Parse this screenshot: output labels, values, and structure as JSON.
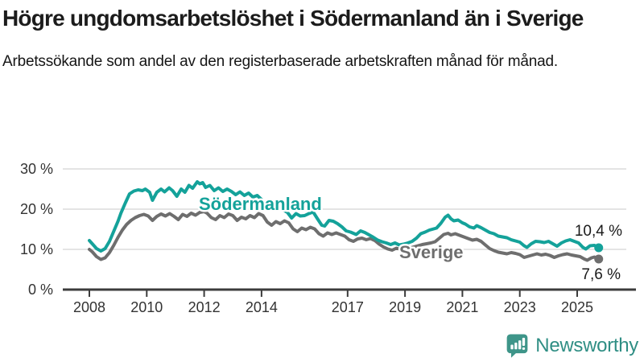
{
  "header": {
    "title": "Högre ungdomsarbetslöshet i Södermanland än i Sverige",
    "subtitle": "Arbetssökande som andel av den registerbaserade arbetskraften månad för månad."
  },
  "chart_data": {
    "type": "line",
    "unit": "%",
    "x_axis": {
      "tick_years": [
        2008,
        2010,
        2012,
        2014,
        2017,
        2019,
        2021,
        2023,
        2025
      ],
      "range": [
        2008.0,
        2025.75
      ]
    },
    "y_axis": {
      "ticks": [
        {
          "value": 0,
          "label": "0 %"
        },
        {
          "value": 10,
          "label": "10 %"
        },
        {
          "value": 20,
          "label": "20 %"
        },
        {
          "value": 30,
          "label": "30 %"
        }
      ],
      "range": [
        0,
        30
      ],
      "gridlines": true
    },
    "colors": {
      "grid": "#DCDCDC",
      "axis": "#3C3C3C",
      "tick_text": "#333333",
      "value_label_text": "#1A1A1A"
    },
    "series": [
      {
        "name": "Sverige",
        "color": "#6E6E6E",
        "end_label": "7,6 %",
        "end_value": 7.6,
        "points": [
          [
            2008.0,
            10.0
          ],
          [
            2008.1,
            9.4
          ],
          [
            2008.25,
            8.2
          ],
          [
            2008.4,
            7.5
          ],
          [
            2008.55,
            7.9
          ],
          [
            2008.7,
            9.2
          ],
          [
            2008.85,
            11.0
          ],
          [
            2009.0,
            13.0
          ],
          [
            2009.15,
            14.8
          ],
          [
            2009.3,
            16.2
          ],
          [
            2009.45,
            17.2
          ],
          [
            2009.6,
            17.9
          ],
          [
            2009.75,
            18.4
          ],
          [
            2009.9,
            18.7
          ],
          [
            2010.05,
            18.3
          ],
          [
            2010.2,
            17.2
          ],
          [
            2010.35,
            18.2
          ],
          [
            2010.5,
            18.8
          ],
          [
            2010.65,
            18.3
          ],
          [
            2010.8,
            18.9
          ],
          [
            2010.95,
            18.2
          ],
          [
            2011.1,
            17.4
          ],
          [
            2011.25,
            18.7
          ],
          [
            2011.4,
            18.2
          ],
          [
            2011.55,
            19.0
          ],
          [
            2011.7,
            18.5
          ],
          [
            2011.85,
            19.2
          ],
          [
            2012.0,
            19.4
          ],
          [
            2012.1,
            19.0
          ],
          [
            2012.25,
            17.9
          ],
          [
            2012.4,
            17.4
          ],
          [
            2012.55,
            18.4
          ],
          [
            2012.7,
            17.9
          ],
          [
            2012.85,
            18.8
          ],
          [
            2013.0,
            18.4
          ],
          [
            2013.15,
            17.2
          ],
          [
            2013.3,
            18.0
          ],
          [
            2013.45,
            17.6
          ],
          [
            2013.6,
            18.4
          ],
          [
            2013.75,
            17.9
          ],
          [
            2013.9,
            18.9
          ],
          [
            2014.05,
            18.4
          ],
          [
            2014.2,
            16.8
          ],
          [
            2014.35,
            16.0
          ],
          [
            2014.5,
            16.9
          ],
          [
            2014.65,
            16.4
          ],
          [
            2014.8,
            17.1
          ],
          [
            2014.95,
            16.6
          ],
          [
            2015.1,
            15.1
          ],
          [
            2015.25,
            14.4
          ],
          [
            2015.4,
            15.3
          ],
          [
            2015.55,
            14.9
          ],
          [
            2015.7,
            15.5
          ],
          [
            2015.85,
            15.1
          ],
          [
            2016.0,
            13.9
          ],
          [
            2016.15,
            13.3
          ],
          [
            2016.3,
            14.1
          ],
          [
            2016.45,
            13.7
          ],
          [
            2016.6,
            14.1
          ],
          [
            2016.75,
            13.7
          ],
          [
            2016.9,
            13.3
          ],
          [
            2017.05,
            12.4
          ],
          [
            2017.2,
            12.0
          ],
          [
            2017.35,
            12.6
          ],
          [
            2017.5,
            12.8
          ],
          [
            2017.65,
            12.4
          ],
          [
            2017.8,
            12.7
          ],
          [
            2017.95,
            12.2
          ],
          [
            2018.1,
            11.3
          ],
          [
            2018.25,
            10.6
          ],
          [
            2018.4,
            10.1
          ],
          [
            2018.55,
            9.8
          ],
          [
            2018.7,
            10.3
          ],
          [
            2018.85,
            10.0
          ],
          [
            2019.0,
            10.1
          ],
          [
            2019.15,
            10.3
          ],
          [
            2019.3,
            10.6
          ],
          [
            2019.45,
            10.9
          ],
          [
            2019.6,
            11.2
          ],
          [
            2019.75,
            11.4
          ],
          [
            2019.9,
            11.6
          ],
          [
            2020.05,
            11.9
          ],
          [
            2020.2,
            12.8
          ],
          [
            2020.35,
            13.7
          ],
          [
            2020.5,
            14.0
          ],
          [
            2020.6,
            13.6
          ],
          [
            2020.75,
            13.9
          ],
          [
            2020.9,
            13.5
          ],
          [
            2021.05,
            13.1
          ],
          [
            2021.2,
            12.7
          ],
          [
            2021.35,
            12.3
          ],
          [
            2021.5,
            12.5
          ],
          [
            2021.65,
            12.0
          ],
          [
            2021.8,
            11.1
          ],
          [
            2021.95,
            10.2
          ],
          [
            2022.1,
            9.7
          ],
          [
            2022.25,
            9.3
          ],
          [
            2022.4,
            9.1
          ],
          [
            2022.55,
            8.9
          ],
          [
            2022.7,
            9.2
          ],
          [
            2022.85,
            9.0
          ],
          [
            2023.0,
            8.7
          ],
          [
            2023.15,
            8.0
          ],
          [
            2023.3,
            8.3
          ],
          [
            2023.45,
            8.6
          ],
          [
            2023.6,
            8.9
          ],
          [
            2023.75,
            8.6
          ],
          [
            2023.9,
            8.8
          ],
          [
            2024.05,
            8.5
          ],
          [
            2024.2,
            8.0
          ],
          [
            2024.35,
            8.4
          ],
          [
            2024.5,
            8.7
          ],
          [
            2024.65,
            8.9
          ],
          [
            2024.8,
            8.6
          ],
          [
            2024.95,
            8.4
          ],
          [
            2025.1,
            8.2
          ],
          [
            2025.25,
            7.6
          ],
          [
            2025.35,
            7.3
          ],
          [
            2025.5,
            7.9
          ],
          [
            2025.6,
            8.1
          ],
          [
            2025.75,
            7.6
          ]
        ]
      },
      {
        "name": "Södermanland",
        "color": "#14A29A",
        "end_label": "10,4 %",
        "end_value": 10.4,
        "points": [
          [
            2008.0,
            12.2
          ],
          [
            2008.1,
            11.4
          ],
          [
            2008.25,
            10.2
          ],
          [
            2008.4,
            9.6
          ],
          [
            2008.55,
            10.2
          ],
          [
            2008.7,
            12.0
          ],
          [
            2008.85,
            14.5
          ],
          [
            2009.0,
            17.0
          ],
          [
            2009.1,
            19.0
          ],
          [
            2009.25,
            21.5
          ],
          [
            2009.4,
            23.8
          ],
          [
            2009.55,
            24.5
          ],
          [
            2009.7,
            24.8
          ],
          [
            2009.85,
            24.6
          ],
          [
            2009.95,
            25.0
          ],
          [
            2010.1,
            24.2
          ],
          [
            2010.2,
            22.2
          ],
          [
            2010.35,
            24.2
          ],
          [
            2010.5,
            25.0
          ],
          [
            2010.62,
            24.3
          ],
          [
            2010.78,
            25.3
          ],
          [
            2010.9,
            24.6
          ],
          [
            2011.05,
            23.2
          ],
          [
            2011.2,
            25.0
          ],
          [
            2011.33,
            24.2
          ],
          [
            2011.47,
            25.9
          ],
          [
            2011.6,
            25.2
          ],
          [
            2011.76,
            26.8
          ],
          [
            2011.85,
            26.3
          ],
          [
            2011.95,
            26.6
          ],
          [
            2012.05,
            25.4
          ],
          [
            2012.2,
            25.9
          ],
          [
            2012.35,
            24.6
          ],
          [
            2012.5,
            25.3
          ],
          [
            2012.65,
            24.4
          ],
          [
            2012.8,
            25.0
          ],
          [
            2012.95,
            24.4
          ],
          [
            2013.1,
            23.6
          ],
          [
            2013.25,
            24.3
          ],
          [
            2013.4,
            23.4
          ],
          [
            2013.55,
            24.0
          ],
          [
            2013.7,
            23.0
          ],
          [
            2013.85,
            23.4
          ],
          [
            2014.0,
            22.4
          ],
          [
            2014.15,
            20.8
          ],
          [
            2014.3,
            20.2
          ],
          [
            2014.45,
            20.0
          ],
          [
            2014.6,
            20.7
          ],
          [
            2014.75,
            19.8
          ],
          [
            2014.9,
            19.2
          ],
          [
            2015.05,
            17.8
          ],
          [
            2015.2,
            18.9
          ],
          [
            2015.35,
            18.3
          ],
          [
            2015.5,
            18.4
          ],
          [
            2015.65,
            18.9
          ],
          [
            2015.8,
            19.3
          ],
          [
            2015.95,
            17.6
          ],
          [
            2016.1,
            16.0
          ],
          [
            2016.2,
            15.8
          ],
          [
            2016.35,
            17.2
          ],
          [
            2016.5,
            17.0
          ],
          [
            2016.65,
            16.4
          ],
          [
            2016.8,
            15.6
          ],
          [
            2016.95,
            14.6
          ],
          [
            2017.1,
            14.3
          ],
          [
            2017.3,
            13.7
          ],
          [
            2017.45,
            14.6
          ],
          [
            2017.6,
            14.2
          ],
          [
            2017.75,
            13.6
          ],
          [
            2017.9,
            13.0
          ],
          [
            2018.05,
            12.3
          ],
          [
            2018.2,
            11.9
          ],
          [
            2018.35,
            11.6
          ],
          [
            2018.5,
            11.2
          ],
          [
            2018.65,
            11.6
          ],
          [
            2018.8,
            11.1
          ],
          [
            2018.95,
            11.3
          ],
          [
            2019.1,
            11.6
          ],
          [
            2019.25,
            12.0
          ],
          [
            2019.4,
            12.8
          ],
          [
            2019.55,
            13.9
          ],
          [
            2019.7,
            14.3
          ],
          [
            2019.85,
            14.8
          ],
          [
            2019.95,
            15.0
          ],
          [
            2020.1,
            15.3
          ],
          [
            2020.25,
            16.5
          ],
          [
            2020.4,
            18.0
          ],
          [
            2020.5,
            18.5
          ],
          [
            2020.6,
            17.6
          ],
          [
            2020.7,
            17.1
          ],
          [
            2020.85,
            17.3
          ],
          [
            2021.0,
            16.6
          ],
          [
            2021.1,
            16.3
          ],
          [
            2021.25,
            15.6
          ],
          [
            2021.4,
            15.3
          ],
          [
            2021.5,
            15.9
          ],
          [
            2021.65,
            15.4
          ],
          [
            2021.8,
            14.8
          ],
          [
            2021.95,
            14.2
          ],
          [
            2022.1,
            13.9
          ],
          [
            2022.25,
            13.3
          ],
          [
            2022.4,
            13.1
          ],
          [
            2022.55,
            12.9
          ],
          [
            2022.7,
            12.4
          ],
          [
            2022.85,
            12.1
          ],
          [
            2023.0,
            11.8
          ],
          [
            2023.15,
            10.9
          ],
          [
            2023.25,
            10.5
          ],
          [
            2023.4,
            11.4
          ],
          [
            2023.55,
            12.0
          ],
          [
            2023.7,
            11.9
          ],
          [
            2023.85,
            11.7
          ],
          [
            2024.0,
            12.0
          ],
          [
            2024.15,
            11.4
          ],
          [
            2024.3,
            10.8
          ],
          [
            2024.45,
            11.6
          ],
          [
            2024.6,
            12.1
          ],
          [
            2024.75,
            12.4
          ],
          [
            2024.9,
            12.0
          ],
          [
            2025.05,
            11.6
          ],
          [
            2025.2,
            10.5
          ],
          [
            2025.3,
            10.1
          ],
          [
            2025.45,
            10.9
          ],
          [
            2025.6,
            11.0
          ],
          [
            2025.75,
            10.4
          ]
        ]
      }
    ],
    "legend_position": "inline-labels-on-lines"
  },
  "footer": {
    "brand": "Newsworthy",
    "brand_color": "#2F8E84",
    "logo_color": "#3E9589",
    "logo_icon": "bar-chart-speech-bubble-icon"
  }
}
